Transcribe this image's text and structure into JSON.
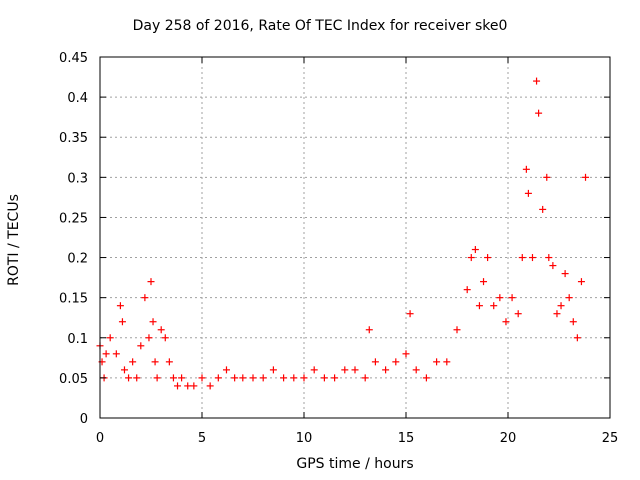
{
  "chart_data": {
    "type": "scatter",
    "title": "Day 258 of 2016, Rate Of TEC Index for receiver ske0",
    "xlabel": "GPS time / hours",
    "ylabel": "ROTI / TECUs",
    "xlim": [
      0,
      25
    ],
    "ylim": [
      0,
      0.45
    ],
    "xticks": [
      "0",
      "5",
      "10",
      "15",
      "20",
      "25"
    ],
    "yticks": [
      "0",
      "0.05",
      "0.1",
      "0.15",
      "0.2",
      "0.25",
      "0.3",
      "0.35",
      "0.4",
      "0.45"
    ],
    "grid": true,
    "marker": "+",
    "color": "#ff0000",
    "series": [
      {
        "name": "ROTI",
        "x": [
          0.0,
          0.1,
          0.2,
          0.3,
          0.5,
          0.8,
          1.0,
          1.1,
          1.2,
          1.4,
          1.6,
          1.8,
          2.0,
          2.2,
          2.4,
          2.5,
          2.6,
          2.7,
          2.8,
          3.0,
          3.2,
          3.4,
          3.6,
          3.8,
          4.0,
          4.3,
          4.6,
          5.0,
          5.4,
          5.8,
          6.2,
          6.6,
          7.0,
          7.5,
          8.0,
          8.5,
          9.0,
          9.5,
          10.0,
          10.5,
          11.0,
          11.5,
          12.0,
          12.5,
          13.0,
          13.2,
          13.5,
          14.0,
          14.5,
          15.0,
          15.2,
          15.5,
          16.0,
          16.5,
          17.0,
          17.5,
          18.0,
          18.2,
          18.4,
          18.6,
          18.8,
          19.0,
          19.3,
          19.6,
          19.9,
          20.2,
          20.5,
          20.7,
          20.9,
          21.0,
          21.2,
          21.4,
          21.5,
          21.7,
          21.9,
          22.0,
          22.2,
          22.4,
          22.6,
          22.8,
          23.0,
          23.2,
          23.4,
          23.6,
          23.8
        ],
        "y": [
          0.09,
          0.07,
          0.05,
          0.08,
          0.1,
          0.08,
          0.14,
          0.12,
          0.06,
          0.05,
          0.07,
          0.05,
          0.09,
          0.15,
          0.1,
          0.17,
          0.12,
          0.07,
          0.05,
          0.11,
          0.1,
          0.07,
          0.05,
          0.04,
          0.05,
          0.04,
          0.04,
          0.05,
          0.04,
          0.05,
          0.06,
          0.05,
          0.05,
          0.05,
          0.05,
          0.06,
          0.05,
          0.05,
          0.05,
          0.06,
          0.05,
          0.05,
          0.06,
          0.06,
          0.05,
          0.11,
          0.07,
          0.06,
          0.07,
          0.08,
          0.13,
          0.06,
          0.05,
          0.07,
          0.07,
          0.11,
          0.16,
          0.2,
          0.21,
          0.14,
          0.17,
          0.2,
          0.14,
          0.15,
          0.12,
          0.15,
          0.13,
          0.2,
          0.31,
          0.28,
          0.2,
          0.42,
          0.38,
          0.26,
          0.3,
          0.2,
          0.19,
          0.13,
          0.14,
          0.18,
          0.15,
          0.12,
          0.1,
          0.17,
          0.3
        ]
      }
    ]
  }
}
